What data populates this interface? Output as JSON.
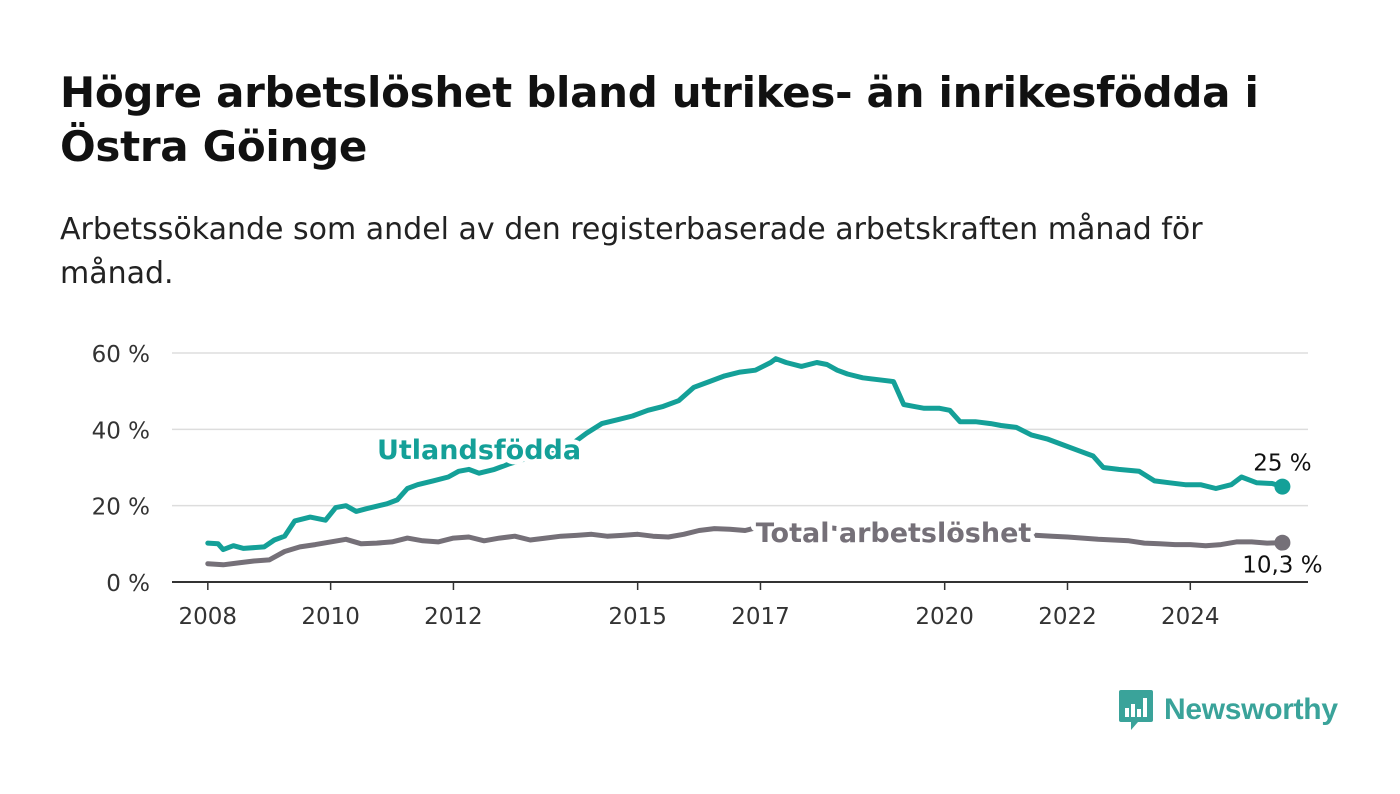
{
  "header": {
    "title": "Högre arbetslöshet bland utrikes- än inrikesfödda i Östra Göinge",
    "subtitle": "Arbetssökande som andel av den registerbaserade arbetskraften månad för månad."
  },
  "brand": {
    "name": "Newsworthy",
    "color": "#3aa39a"
  },
  "chart_data": {
    "type": "line",
    "title": "Högre arbetslöshet bland utrikes- än inrikesfödda i Östra Göinge",
    "subtitle": "Arbetssökande som andel av den registerbaserade arbetskraften månad för månad.",
    "xlabel": "",
    "ylabel": "",
    "x_ticks": [
      "2008",
      "2010",
      "2012",
      "2015",
      "2017",
      "2020",
      "2022",
      "2024"
    ],
    "y_ticks": [
      {
        "value": 0,
        "label": "0 %"
      },
      {
        "value": 20,
        "label": "20 %"
      },
      {
        "value": 40,
        "label": "40 %"
      },
      {
        "value": 60,
        "label": "60 %"
      }
    ],
    "ylim": [
      0,
      60
    ],
    "xlim": [
      "2007-06",
      "2025-12"
    ],
    "grid": true,
    "legend": "none",
    "series": [
      {
        "name": "Utlandsfödda",
        "color": "#14a098",
        "label_at": "2012-06",
        "end_label": "25 %",
        "points": [
          [
            "2008-01",
            10.2
          ],
          [
            "2008-03",
            10.0
          ],
          [
            "2008-04",
            8.5
          ],
          [
            "2008-06",
            9.5
          ],
          [
            "2008-08",
            8.8
          ],
          [
            "2008-12",
            9.2
          ],
          [
            "2009-02",
            11.0
          ],
          [
            "2009-04",
            12.0
          ],
          [
            "2009-06",
            16.0
          ],
          [
            "2009-09",
            17.0
          ],
          [
            "2009-12",
            16.2
          ],
          [
            "2010-02",
            19.5
          ],
          [
            "2010-04",
            20.0
          ],
          [
            "2010-06",
            18.5
          ],
          [
            "2010-08",
            19.2
          ],
          [
            "2010-12",
            20.5
          ],
          [
            "2011-02",
            21.5
          ],
          [
            "2011-04",
            24.5
          ],
          [
            "2011-06",
            25.5
          ],
          [
            "2011-09",
            26.5
          ],
          [
            "2011-12",
            27.5
          ],
          [
            "2012-02",
            29.0
          ],
          [
            "2012-04",
            29.5
          ],
          [
            "2012-06",
            28.5
          ],
          [
            "2012-09",
            29.5
          ],
          [
            "2012-12",
            31.0
          ],
          [
            "2013-06",
            33.5
          ],
          [
            "2013-12",
            36.0
          ],
          [
            "2014-03",
            39.0
          ],
          [
            "2014-06",
            41.5
          ],
          [
            "2014-09",
            42.5
          ],
          [
            "2014-12",
            43.5
          ],
          [
            "2015-03",
            45.0
          ],
          [
            "2015-06",
            46.0
          ],
          [
            "2015-09",
            47.5
          ],
          [
            "2015-12",
            51.0
          ],
          [
            "2016-03",
            52.5
          ],
          [
            "2016-06",
            54.0
          ],
          [
            "2016-09",
            55.0
          ],
          [
            "2016-12",
            55.5
          ],
          [
            "2017-03",
            57.5
          ],
          [
            "2017-04",
            58.5
          ],
          [
            "2017-06",
            57.5
          ],
          [
            "2017-09",
            56.5
          ],
          [
            "2017-12",
            57.5
          ],
          [
            "2018-02",
            57.0
          ],
          [
            "2018-04",
            55.5
          ],
          [
            "2018-06",
            54.5
          ],
          [
            "2018-09",
            53.5
          ],
          [
            "2018-12",
            53.0
          ],
          [
            "2019-03",
            52.5
          ],
          [
            "2019-05",
            46.5
          ],
          [
            "2019-07",
            46.0
          ],
          [
            "2019-09",
            45.5
          ],
          [
            "2019-12",
            45.5
          ],
          [
            "2020-02",
            45.0
          ],
          [
            "2020-04",
            42.0
          ],
          [
            "2020-07",
            42.0
          ],
          [
            "2020-10",
            41.5
          ],
          [
            "2020-12",
            41.0
          ],
          [
            "2021-03",
            40.5
          ],
          [
            "2021-06",
            38.5
          ],
          [
            "2021-09",
            37.5
          ],
          [
            "2021-12",
            36.0
          ],
          [
            "2022-03",
            34.5
          ],
          [
            "2022-06",
            33.0
          ],
          [
            "2022-08",
            30.0
          ],
          [
            "2022-11",
            29.5
          ],
          [
            "2023-03",
            29.0
          ],
          [
            "2023-06",
            26.5
          ],
          [
            "2023-09",
            26.0
          ],
          [
            "2023-12",
            25.5
          ],
          [
            "2024-03",
            25.5
          ],
          [
            "2024-06",
            24.5
          ],
          [
            "2024-09",
            25.5
          ],
          [
            "2024-11",
            27.5
          ],
          [
            "2025-02",
            26.0
          ],
          [
            "2025-05",
            25.8
          ],
          [
            "2025-07",
            25.0
          ]
        ]
      },
      {
        "name": "Total arbetslöshet",
        "color": "#757078",
        "label_at": "2019-03",
        "end_label": "10,3 %",
        "points": [
          [
            "2008-01",
            4.8
          ],
          [
            "2008-04",
            4.5
          ],
          [
            "2008-07",
            5.0
          ],
          [
            "2008-10",
            5.5
          ],
          [
            "2009-01",
            5.8
          ],
          [
            "2009-04",
            8.0
          ],
          [
            "2009-07",
            9.2
          ],
          [
            "2009-10",
            9.8
          ],
          [
            "2010-01",
            10.5
          ],
          [
            "2010-04",
            11.2
          ],
          [
            "2010-07",
            10.0
          ],
          [
            "2010-10",
            10.2
          ],
          [
            "2011-01",
            10.5
          ],
          [
            "2011-04",
            11.5
          ],
          [
            "2011-07",
            10.8
          ],
          [
            "2011-10",
            10.5
          ],
          [
            "2012-01",
            11.5
          ],
          [
            "2012-04",
            11.8
          ],
          [
            "2012-07",
            10.8
          ],
          [
            "2012-10",
            11.5
          ],
          [
            "2013-01",
            12.0
          ],
          [
            "2013-04",
            11.0
          ],
          [
            "2013-07",
            11.5
          ],
          [
            "2013-10",
            12.0
          ],
          [
            "2014-01",
            12.2
          ],
          [
            "2014-04",
            12.5
          ],
          [
            "2014-07",
            12.0
          ],
          [
            "2014-10",
            12.2
          ],
          [
            "2015-01",
            12.5
          ],
          [
            "2015-04",
            12.0
          ],
          [
            "2015-07",
            11.8
          ],
          [
            "2015-10",
            12.5
          ],
          [
            "2016-01",
            13.5
          ],
          [
            "2016-04",
            14.0
          ],
          [
            "2016-07",
            13.8
          ],
          [
            "2016-10",
            13.5
          ],
          [
            "2017-01",
            14.5
          ],
          [
            "2017-04",
            15.0
          ],
          [
            "2017-07",
            14.5
          ],
          [
            "2017-10",
            14.8
          ],
          [
            "2018-01",
            14.5
          ],
          [
            "2018-04",
            14.0
          ],
          [
            "2018-07",
            13.8
          ],
          [
            "2018-10",
            13.5
          ],
          [
            "2019-01",
            13.5
          ],
          [
            "2019-04",
            13.2
          ],
          [
            "2019-07",
            13.0
          ],
          [
            "2019-10",
            13.2
          ],
          [
            "2020-01",
            13.0
          ],
          [
            "2020-04",
            13.0
          ],
          [
            "2020-07",
            12.8
          ],
          [
            "2020-10",
            12.5
          ],
          [
            "2021-01",
            12.5
          ],
          [
            "2021-04",
            12.5
          ],
          [
            "2021-07",
            12.2
          ],
          [
            "2021-10",
            12.0
          ],
          [
            "2022-01",
            11.8
          ],
          [
            "2022-04",
            11.5
          ],
          [
            "2022-07",
            11.2
          ],
          [
            "2022-10",
            11.0
          ],
          [
            "2023-01",
            10.8
          ],
          [
            "2023-04",
            10.2
          ],
          [
            "2023-07",
            10.0
          ],
          [
            "2023-10",
            9.8
          ],
          [
            "2024-01",
            9.8
          ],
          [
            "2024-04",
            9.5
          ],
          [
            "2024-07",
            9.8
          ],
          [
            "2024-10",
            10.5
          ],
          [
            "2025-01",
            10.5
          ],
          [
            "2025-04",
            10.2
          ],
          [
            "2025-07",
            10.3
          ]
        ]
      }
    ]
  }
}
